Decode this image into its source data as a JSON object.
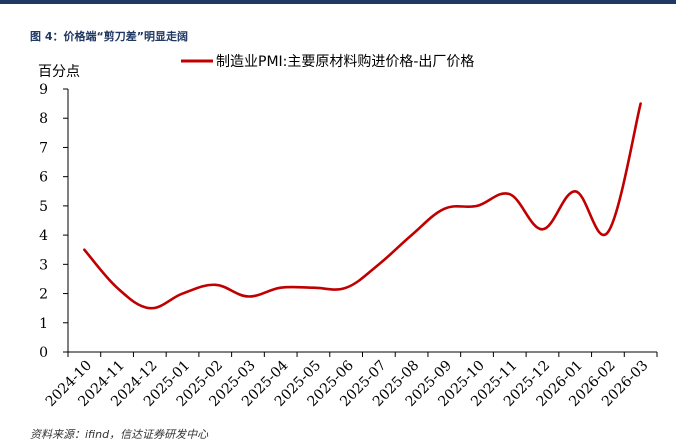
{
  "figure": {
    "title": "图 4：价格端“剪刀差”明显走阔",
    "source": "资料来源：ifind，信达证券研发中心"
  },
  "chart_data": {
    "type": "line",
    "ylabel": "百分点",
    "ylim": [
      0,
      9
    ],
    "yticks": [
      0,
      1,
      2,
      3,
      4,
      5,
      6,
      7,
      8,
      9
    ],
    "legend_position": "top",
    "categories": [
      "2024-10",
      "2024-11",
      "2024-12",
      "2025-01",
      "2025-02",
      "2025-03",
      "2025-04",
      "2025-05",
      "2025-06",
      "2025-07",
      "2025-08",
      "2025-09",
      "2025-10",
      "2025-11",
      "2025-12",
      "2026-01",
      "2026-02",
      "2026-03"
    ],
    "series": [
      {
        "name": "制造业PMI:主要原材料购进价格-出厂价格",
        "color": "#c00000",
        "values": [
          3.5,
          2.2,
          1.5,
          2.0,
          2.3,
          1.9,
          2.2,
          2.2,
          2.2,
          3.0,
          4.0,
          4.9,
          5.0,
          5.4,
          4.2,
          5.5,
          4.1,
          8.5
        ]
      }
    ]
  }
}
